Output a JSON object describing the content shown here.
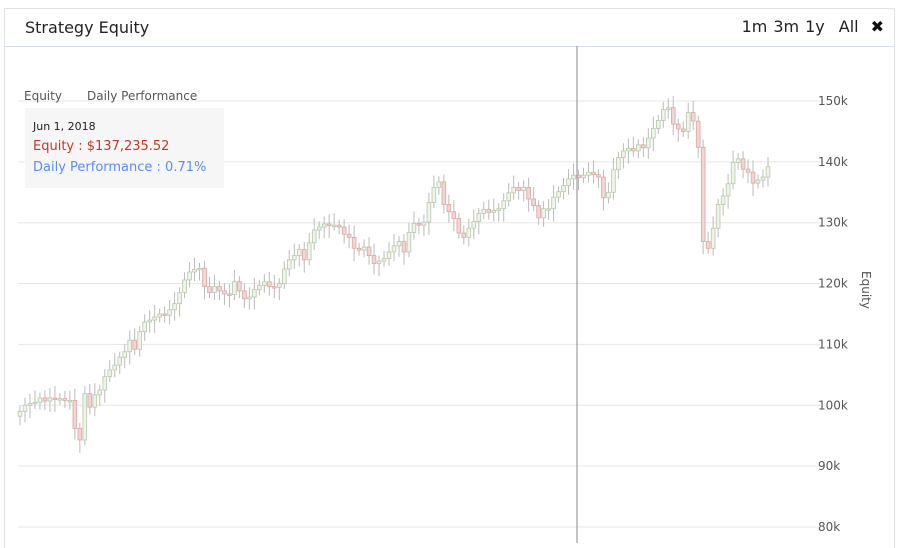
{
  "panel": {
    "title": "Strategy Equity",
    "ranges": [
      "1m",
      "3m",
      "1y",
      "All"
    ],
    "close_icon": "close-icon"
  },
  "legend": {
    "equity": "Equity",
    "daily": "Daily Performance"
  },
  "tooltip": {
    "date": "Jun 1, 2018",
    "equity": "Equity : $137,235.52",
    "daily": "Daily Performance : 0.71%"
  },
  "colors": {
    "up": "#eef5e8",
    "down": "#f2d6d4",
    "grid": "#e6e6e6",
    "crosshair": "#888888",
    "equity_text": "#c0392b",
    "daily_text": "#5b8def"
  },
  "chart_data": {
    "type": "candlestick",
    "title": "Strategy Equity",
    "ylabel": "Equity",
    "ylim": [
      80000,
      150000
    ],
    "yticks": [
      80000,
      90000,
      100000,
      110000,
      120000,
      130000,
      140000,
      150000
    ],
    "ytick_labels": [
      "80k",
      "90k",
      "100k",
      "110k",
      "120k",
      "130k",
      "140k",
      "150k"
    ],
    "grid": true,
    "legend": [
      "Equity",
      "Daily Performance"
    ],
    "crosshair_date": "Jun 1, 2018",
    "closes": [
      99000,
      100000,
      100300,
      100500,
      101200,
      100700,
      101200,
      101000,
      101100,
      100800,
      100800,
      96200,
      94300,
      101900,
      99700,
      101700,
      102500,
      104700,
      105800,
      106600,
      107900,
      108800,
      110700,
      109200,
      112100,
      113700,
      114000,
      114500,
      115000,
      114800,
      115700,
      116700,
      118500,
      120600,
      121900,
      122300,
      122500,
      119500,
      118500,
      119500,
      118800,
      118300,
      118200,
      120300,
      118800,
      117500,
      117800,
      119000,
      119700,
      120300,
      119500,
      119400,
      120000,
      122400,
      123900,
      124600,
      125600,
      123900,
      126700,
      128800,
      129300,
      129800,
      129600,
      129600,
      129300,
      128100,
      127600,
      125800,
      125500,
      126000,
      124600,
      123300,
      123700,
      124100,
      125200,
      126200,
      126900,
      125200,
      128400,
      129900,
      129600,
      130100,
      133300,
      135800,
      136700,
      133000,
      131800,
      130700,
      128300,
      127600,
      129100,
      130200,
      131500,
      132200,
      131700,
      132000,
      132300,
      133600,
      134900,
      135800,
      135300,
      135800,
      133900,
      132800,
      130800,
      132300,
      132300,
      134200,
      135100,
      136100,
      137200,
      137800,
      137400,
      137800,
      138300,
      137900,
      137500,
      134100,
      135000,
      138700,
      140700,
      141800,
      142200,
      141800,
      142800,
      142300,
      143900,
      145500,
      146800,
      148600,
      148900,
      146200,
      145400,
      145000,
      148100,
      146700,
      142400,
      126900,
      125800,
      129100,
      133000,
      134400,
      136400,
      139900,
      140500,
      138800,
      138300,
      136500,
      137000,
      137500,
      139200
    ]
  }
}
